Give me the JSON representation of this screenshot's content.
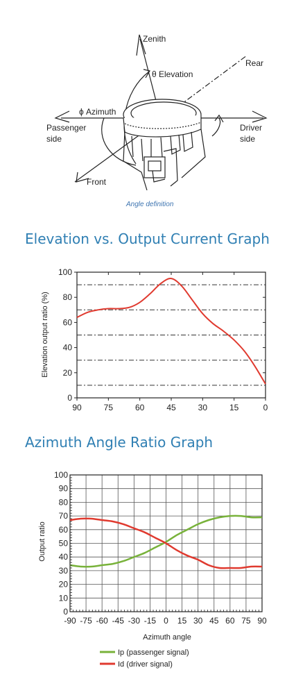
{
  "diagram": {
    "labels": {
      "zenith": "Zenith",
      "elevation": "θ Elevation",
      "rear": "Rear",
      "azimuth": "ϕ Azimuth",
      "passenger_line1": "Passenger",
      "passenger_line2": "side",
      "driver_line1": "Driver",
      "driver_line2": "side",
      "front": "Front"
    },
    "caption": "Angle definition"
  },
  "titles": {
    "elevation": "Elevation vs. Output Current Graph",
    "azimuth": "Azimuth Angle Ratio Graph"
  },
  "colors": {
    "title": "#2f7fb3",
    "red_series": "#e03a2f",
    "green_series": "#78b23a",
    "caption": "#3d74b0"
  },
  "chart_data": [
    {
      "type": "line",
      "title": "Elevation vs. Output Current Graph",
      "xlabel": "",
      "ylabel": "Elevation output ratio (%)",
      "xlim": [
        90,
        0
      ],
      "ylim": [
        0,
        100
      ],
      "xticks": [
        "90",
        "75",
        "60",
        "45",
        "30",
        "15",
        "0"
      ],
      "yticks": [
        "0",
        "20",
        "40",
        "60",
        "80",
        "100"
      ],
      "grid": "dash-dot horizontal lines at 10, 30, 50, 70, 90",
      "series": [
        {
          "color": "#e03a2f",
          "x": [
            90,
            85,
            80,
            75,
            70,
            65,
            60,
            55,
            50,
            45,
            40,
            35,
            30,
            25,
            20,
            15,
            10,
            5,
            0
          ],
          "y": [
            64,
            68,
            70,
            71,
            71,
            72,
            76,
            83,
            91,
            95,
            89,
            78,
            67,
            59,
            53,
            46,
            37,
            25,
            11
          ]
        }
      ]
    },
    {
      "type": "line",
      "title": "Azimuth Angle Ratio Graph",
      "xlabel": "Azimuth angle",
      "ylabel": "Output ratio",
      "xlim": [
        -90,
        90
      ],
      "ylim": [
        0,
        100
      ],
      "xticks": [
        "-90",
        "-75",
        "-60",
        "-45",
        "-30",
        "-15",
        "0",
        "15",
        "30",
        "45",
        "60",
        "75",
        "90"
      ],
      "yticks": [
        "0",
        "10",
        "20",
        "30",
        "40",
        "50",
        "60",
        "70",
        "80",
        "90",
        "100"
      ],
      "grid": "on",
      "legend": "bottom",
      "series": [
        {
          "name": "Ip (passenger signal)",
          "color": "#78b23a",
          "x": [
            -90,
            -80,
            -70,
            -60,
            -50,
            -40,
            -30,
            -20,
            -10,
            0,
            10,
            20,
            30,
            40,
            50,
            60,
            70,
            80,
            90
          ],
          "y": [
            34,
            33,
            33,
            34,
            35,
            37,
            40,
            43,
            47,
            51,
            56,
            60,
            64,
            67,
            69,
            70,
            70,
            69,
            69
          ]
        },
        {
          "name": "Id (driver signal)",
          "color": "#e03a2f",
          "x": [
            -90,
            -80,
            -70,
            -60,
            -50,
            -40,
            -30,
            -20,
            -10,
            0,
            10,
            20,
            30,
            40,
            50,
            60,
            70,
            80,
            90
          ],
          "y": [
            67,
            68,
            68,
            67,
            66,
            64,
            61,
            58,
            54,
            50,
            45,
            41,
            38,
            34,
            32,
            32,
            32,
            33,
            33
          ]
        }
      ]
    }
  ]
}
